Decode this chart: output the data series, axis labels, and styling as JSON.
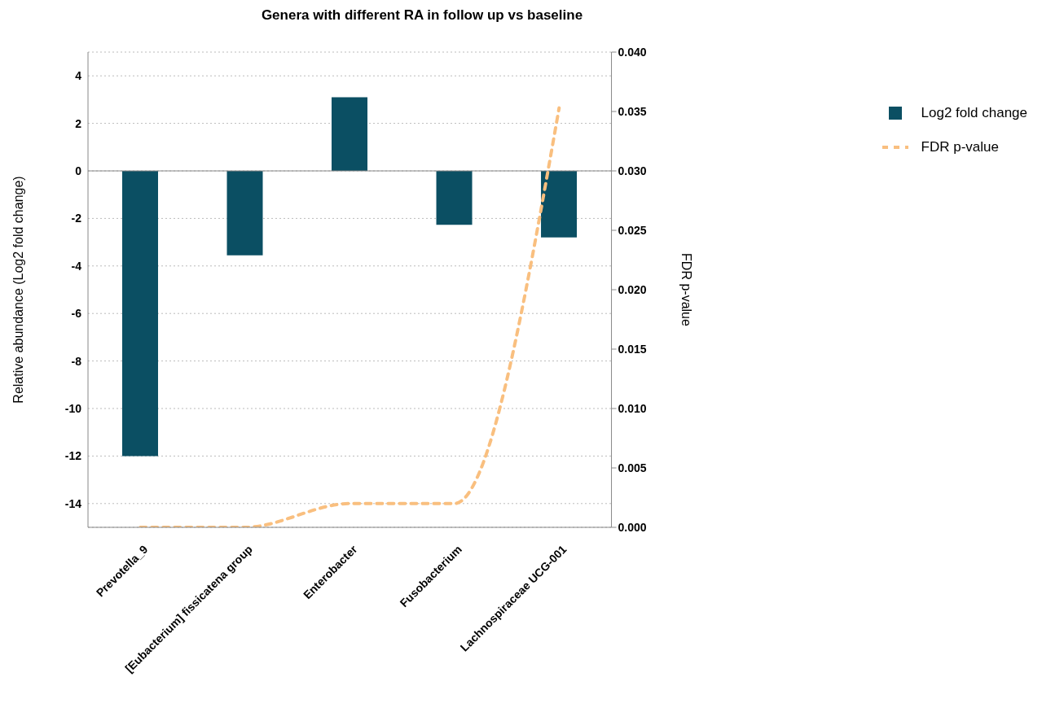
{
  "chart_data": {
    "type": "bar",
    "title": "Genera with different RA in follow up vs baseline",
    "ylabel": "Relative abundance (Log2 fold change)",
    "y2label": "FDR p-value",
    "categories": [
      "Prevotella_9",
      "[Eubacterium] fissicatena group",
      "Enterobacter",
      "Fusobacterium",
      "Lachnospiraceae UCG-001"
    ],
    "series": [
      {
        "name": "Log2 fold change",
        "color": "#0b4f63",
        "values": [
          -12,
          -3.55,
          3.1,
          -2.27,
          -2.8
        ]
      },
      {
        "name": "FDR p-value",
        "type": "line",
        "axis": "y2",
        "color": "#f9bf7f",
        "line_style": "dashed",
        "marker": "none",
        "values": [
          0.0,
          0.0,
          0.002,
          0.002,
          0.0353
        ]
      }
    ],
    "ylim": [
      -15,
      5
    ],
    "yticks": [
      -14,
      -12,
      -10,
      -8,
      -6,
      -4,
      -2,
      0,
      2,
      4
    ],
    "y2lim": [
      0,
      0.04
    ],
    "y2ticks": [
      {
        "value": 0,
        "label": "0.000"
      },
      {
        "value": 0.005,
        "label": "0.005"
      },
      {
        "value": 0.01,
        "label": "0.010"
      },
      {
        "value": 0.015,
        "label": "0.015"
      },
      {
        "value": 0.02,
        "label": "0.020"
      },
      {
        "value": 0.025,
        "label": "0.025"
      },
      {
        "value": 0.03,
        "label": "0.030"
      },
      {
        "value": 0.035,
        "label": "0.035"
      },
      {
        "value": 0.04,
        "label": "0.040"
      }
    ],
    "grid": "y",
    "legend": "top right"
  }
}
